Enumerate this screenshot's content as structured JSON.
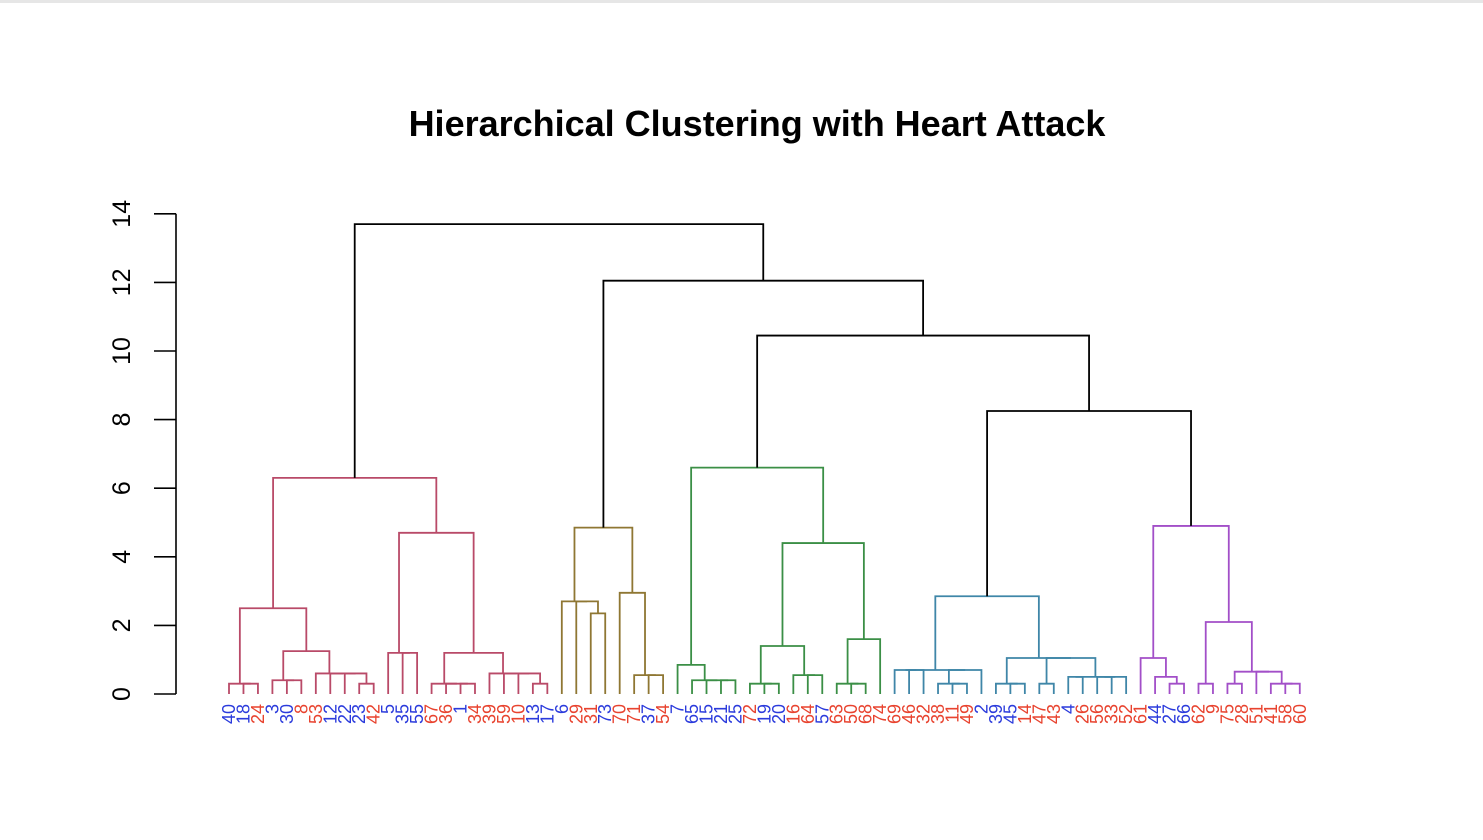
{
  "chart_data": {
    "type": "dendrogram",
    "title": "Hierarchical Clustering with Heart Attack",
    "xlabel": "",
    "ylabel": "",
    "ylim": [
      0,
      14
    ],
    "y_ticks": [
      0,
      2,
      4,
      6,
      8,
      10,
      12,
      14
    ],
    "y_tick_labels": [
      "0",
      "2",
      "4",
      "6",
      "8",
      "10",
      "12",
      "14"
    ],
    "grid": false,
    "label_colors": {
      "blue": "#2b3bdc",
      "red": "#e8432f"
    },
    "cluster_colors": [
      "#b94a68",
      "#8f7733",
      "#3b8f46",
      "#3f86a8",
      "#a24fc8"
    ],
    "trunk_color": "#000000",
    "leaves": [
      {
        "label": "40",
        "color": "blue"
      },
      {
        "label": "18",
        "color": "blue"
      },
      {
        "label": "24",
        "color": "red"
      },
      {
        "label": "3",
        "color": "blue"
      },
      {
        "label": "30",
        "color": "blue"
      },
      {
        "label": "8",
        "color": "red"
      },
      {
        "label": "53",
        "color": "red"
      },
      {
        "label": "12",
        "color": "blue"
      },
      {
        "label": "22",
        "color": "blue"
      },
      {
        "label": "23",
        "color": "blue"
      },
      {
        "label": "42",
        "color": "red"
      },
      {
        "label": "5",
        "color": "blue"
      },
      {
        "label": "35",
        "color": "blue"
      },
      {
        "label": "55",
        "color": "blue"
      },
      {
        "label": "67",
        "color": "red"
      },
      {
        "label": "36",
        "color": "red"
      },
      {
        "label": "1",
        "color": "blue"
      },
      {
        "label": "34",
        "color": "red"
      },
      {
        "label": "39",
        "color": "red"
      },
      {
        "label": "59",
        "color": "red"
      },
      {
        "label": "10",
        "color": "red"
      },
      {
        "label": "13",
        "color": "blue"
      },
      {
        "label": "17",
        "color": "blue"
      },
      {
        "label": "6",
        "color": "blue"
      },
      {
        "label": "29",
        "color": "red"
      },
      {
        "label": "31",
        "color": "red"
      },
      {
        "label": "73",
        "color": "blue"
      },
      {
        "label": "70",
        "color": "red"
      },
      {
        "label": "71",
        "color": "red"
      },
      {
        "label": "37",
        "color": "blue"
      },
      {
        "label": "54",
        "color": "red"
      },
      {
        "label": "7",
        "color": "blue"
      },
      {
        "label": "65",
        "color": "blue"
      },
      {
        "label": "15",
        "color": "blue"
      },
      {
        "label": "21",
        "color": "blue"
      },
      {
        "label": "25",
        "color": "blue"
      },
      {
        "label": "72",
        "color": "red"
      },
      {
        "label": "19",
        "color": "blue"
      },
      {
        "label": "20",
        "color": "blue"
      },
      {
        "label": "16",
        "color": "red"
      },
      {
        "label": "64",
        "color": "red"
      },
      {
        "label": "57",
        "color": "blue"
      },
      {
        "label": "63",
        "color": "red"
      },
      {
        "label": "50",
        "color": "red"
      },
      {
        "label": "68",
        "color": "red"
      },
      {
        "label": "74",
        "color": "red"
      },
      {
        "label": "69",
        "color": "red"
      },
      {
        "label": "46",
        "color": "red"
      },
      {
        "label": "32",
        "color": "red"
      },
      {
        "label": "38",
        "color": "red"
      },
      {
        "label": "11",
        "color": "red"
      },
      {
        "label": "49",
        "color": "red"
      },
      {
        "label": "2",
        "color": "blue"
      },
      {
        "label": "39",
        "color": "blue"
      },
      {
        "label": "45",
        "color": "blue"
      },
      {
        "label": "14",
        "color": "red"
      },
      {
        "label": "47",
        "color": "red"
      },
      {
        "label": "43",
        "color": "red"
      },
      {
        "label": "4",
        "color": "blue"
      },
      {
        "label": "26",
        "color": "red"
      },
      {
        "label": "56",
        "color": "red"
      },
      {
        "label": "33",
        "color": "red"
      },
      {
        "label": "52",
        "color": "red"
      },
      {
        "label": "61",
        "color": "red"
      },
      {
        "label": "44",
        "color": "blue"
      },
      {
        "label": "27",
        "color": "blue"
      },
      {
        "label": "66",
        "color": "blue"
      },
      {
        "label": "62",
        "color": "red"
      },
      {
        "label": "9",
        "color": "red"
      },
      {
        "label": "75",
        "color": "red"
      },
      {
        "label": "28",
        "color": "red"
      },
      {
        "label": "51",
        "color": "red"
      },
      {
        "label": "41",
        "color": "red"
      },
      {
        "label": "58",
        "color": "red"
      },
      {
        "label": "60",
        "color": "red"
      }
    ],
    "merges": [
      {
        "left": 1,
        "right": 2,
        "height": 0.3,
        "cluster": 0
      },
      {
        "left": 0,
        "right": "m0",
        "height": 0.3,
        "cluster": 0
      },
      {
        "left": 4,
        "right": 5,
        "height": 0.4,
        "cluster": 0
      },
      {
        "left": 3,
        "right": "m2",
        "height": 0.4,
        "cluster": 0
      },
      {
        "left": 9,
        "right": 10,
        "height": 0.3,
        "cluster": 0
      },
      {
        "left": 8,
        "right": "m4",
        "height": 0.6,
        "cluster": 0
      },
      {
        "left": 7,
        "right": "m5",
        "height": 0.6,
        "cluster": 0
      },
      {
        "left": 6,
        "right": "m6",
        "height": 0.6,
        "cluster": 0
      },
      {
        "left": "m7",
        "right": "m3",
        "height": 1.25,
        "cluster": 0
      },
      {
        "left": "m1",
        "right": "m8",
        "height": 2.5,
        "cluster": 0
      },
      {
        "left": 12,
        "right": 13,
        "height": 1.2,
        "cluster": 0
      },
      {
        "left": 11,
        "right": "m10",
        "height": 1.2,
        "cluster": 0
      },
      {
        "left": 16,
        "right": 17,
        "height": 0.3,
        "cluster": 0
      },
      {
        "left": 15,
        "right": "m12",
        "height": 0.3,
        "cluster": 0
      },
      {
        "left": 14,
        "right": "m13",
        "height": 0.3,
        "cluster": 0
      },
      {
        "left": 21,
        "right": 22,
        "height": 0.3,
        "cluster": 0
      },
      {
        "left": 20,
        "right": "m15",
        "height": 0.6,
        "cluster": 0
      },
      {
        "left": 19,
        "right": "m16",
        "height": 0.6,
        "cluster": 0
      },
      {
        "left": 18,
        "right": "m17",
        "height": 0.6,
        "cluster": 0
      },
      {
        "left": "m14",
        "right": "m18",
        "height": 1.2,
        "cluster": 0
      },
      {
        "left": "m11",
        "right": "m19",
        "height": 4.7,
        "cluster": 0
      },
      {
        "left": "m9",
        "right": "m20",
        "height": 6.3,
        "cluster": 0
      },
      {
        "left": 25,
        "right": 26,
        "height": 2.35,
        "cluster": 1
      },
      {
        "left": 24,
        "right": "m22",
        "height": 2.7,
        "cluster": 1
      },
      {
        "left": 23,
        "right": "m23",
        "height": 2.7,
        "cluster": 1
      },
      {
        "left": 29,
        "right": 30,
        "height": 0.55,
        "cluster": 1
      },
      {
        "left": 28,
        "right": "m25",
        "height": 0.55,
        "cluster": 1
      },
      {
        "left": 27,
        "right": "m26",
        "height": 2.95,
        "cluster": 1
      },
      {
        "left": "m24",
        "right": "m27",
        "height": 4.85,
        "cluster": 1
      },
      {
        "left": 34,
        "right": 35,
        "height": 0.4,
        "cluster": 2
      },
      {
        "left": 33,
        "right": "m29",
        "height": 0.4,
        "cluster": 2
      },
      {
        "left": 32,
        "right": "m30",
        "height": 0.4,
        "cluster": 2
      },
      {
        "left": 31,
        "right": "m31",
        "height": 0.85,
        "cluster": 2
      },
      {
        "left": 37,
        "right": 38,
        "height": 0.3,
        "cluster": 2
      },
      {
        "left": 36,
        "right": "m33",
        "height": 0.3,
        "cluster": 2
      },
      {
        "left": 40,
        "right": 41,
        "height": 0.55,
        "cluster": 2
      },
      {
        "left": 39,
        "right": "m35",
        "height": 0.55,
        "cluster": 2
      },
      {
        "left": "m34",
        "right": "m36",
        "height": 1.4,
        "cluster": 2
      },
      {
        "left": 43,
        "right": 44,
        "height": 0.3,
        "cluster": 2
      },
      {
        "left": 42,
        "right": "m38",
        "height": 0.3,
        "cluster": 2
      },
      {
        "left": 45,
        "right": "m39",
        "height": 1.6,
        "cluster": 2
      },
      {
        "left": "m37",
        "right": "m40",
        "height": 4.4,
        "cluster": 2
      },
      {
        "left": "m32",
        "right": "m41",
        "height": 6.6,
        "cluster": 2
      },
      {
        "left": 47,
        "right": 48,
        "height": 0.7,
        "cluster": 3
      },
      {
        "left": 46,
        "right": "m43",
        "height": 0.7,
        "cluster": 3
      },
      {
        "left": 50,
        "right": 51,
        "height": 0.3,
        "cluster": 3
      },
      {
        "left": 49,
        "right": "m45",
        "height": 0.3,
        "cluster": 3
      },
      {
        "left": 52,
        "right": "m46",
        "height": 0.7,
        "cluster": 3
      },
      {
        "left": "m44",
        "right": "m47",
        "height": 0.7,
        "cluster": 3
      },
      {
        "left": 54,
        "right": 55,
        "height": 0.3,
        "cluster": 3
      },
      {
        "left": 53,
        "right": "m49",
        "height": 0.3,
        "cluster": 3
      },
      {
        "left": 56,
        "right": 57,
        "height": 0.3,
        "cluster": 3
      },
      {
        "left": 58,
        "right": 59,
        "height": 0.5,
        "cluster": 3
      },
      {
        "left": 60,
        "right": 61,
        "height": 0.5,
        "cluster": 3
      },
      {
        "left": 62,
        "right": "m53",
        "height": 0.5,
        "cluster": 3
      },
      {
        "left": "m52",
        "right": "m54",
        "height": 0.5,
        "cluster": 3
      },
      {
        "left": "m51",
        "right": "m55",
        "height": 1.05,
        "cluster": 3
      },
      {
        "left": "m50",
        "right": "m56",
        "height": 1.05,
        "cluster": 3
      },
      {
        "left": "m48",
        "right": "m57",
        "height": 2.85,
        "cluster": 3
      },
      {
        "left": 65,
        "right": 66,
        "height": 0.3,
        "cluster": 4
      },
      {
        "left": 64,
        "right": "m59",
        "height": 0.5,
        "cluster": 4
      },
      {
        "left": 63,
        "right": "m60",
        "height": 1.05,
        "cluster": 4
      },
      {
        "left": 67,
        "right": 68,
        "height": 0.3,
        "cluster": 4
      },
      {
        "left": 69,
        "right": 70,
        "height": 0.3,
        "cluster": 4
      },
      {
        "left": 73,
        "right": 74,
        "height": 0.3,
        "cluster": 4
      },
      {
        "left": 72,
        "right": "m64",
        "height": 0.3,
        "cluster": 4
      },
      {
        "left": 71,
        "right": "m65",
        "height": 0.65,
        "cluster": 4
      },
      {
        "left": "m63",
        "right": "m66",
        "height": 0.65,
        "cluster": 4
      },
      {
        "left": "m62",
        "right": "m67",
        "height": 2.1,
        "cluster": 4
      },
      {
        "left": "m61",
        "right": "m68",
        "height": 4.9,
        "cluster": 4
      },
      {
        "left": "m58",
        "right": "m69",
        "height": 8.25,
        "cluster": -1
      },
      {
        "left": "m42",
        "right": "m70",
        "height": 10.45,
        "cluster": -1
      },
      {
        "left": "m28",
        "right": "m71",
        "height": 12.05,
        "cluster": -1
      },
      {
        "left": "m21",
        "right": "m72",
        "height": 13.7,
        "cluster": -1
      }
    ]
  }
}
